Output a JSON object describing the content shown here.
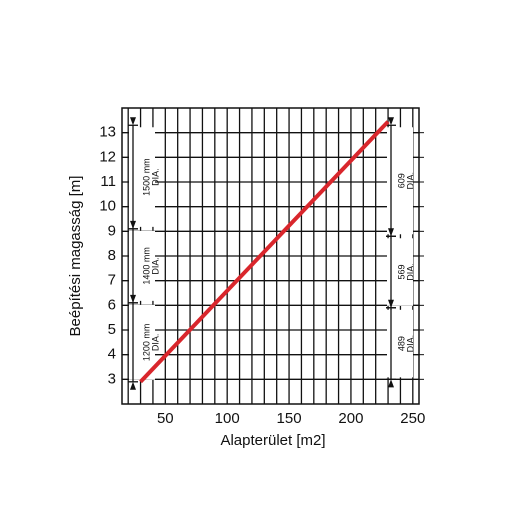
{
  "chart_data": {
    "type": "line",
    "x_label": "Alapterület [m2]",
    "y_label": "Beépítési magasság [m]",
    "x": [
      30,
      230
    ],
    "series": [
      {
        "color": "#d9262c",
        "values": [
          2.9,
          13.45
        ]
      }
    ],
    "xlim": [
      15,
      255
    ],
    "ylim": [
      2,
      14
    ],
    "xticks": [
      50,
      100,
      150,
      200,
      250
    ],
    "yticks": [
      3,
      4,
      5,
      6,
      7,
      8,
      9,
      10,
      11,
      12,
      13
    ],
    "xgrid": [
      20,
      30,
      40,
      50,
      60,
      70,
      80,
      90,
      100,
      110,
      120,
      130,
      140,
      150,
      160,
      170,
      180,
      190,
      200,
      210,
      220,
      230,
      240,
      250
    ],
    "grid": true,
    "annotations": [
      {
        "side": "left",
        "lines": [
          "1500 mm",
          "DIA."
        ],
        "range": [
          9.1,
          13.3
        ]
      },
      {
        "side": "left",
        "lines": [
          "1400 mm",
          "DIA."
        ],
        "range": [
          6.1,
          9.1
        ]
      },
      {
        "side": "left",
        "lines": [
          "1200 mm",
          "DIA."
        ],
        "range": [
          2.9,
          6.1
        ]
      },
      {
        "side": "right",
        "lines": [
          "609",
          "DIA."
        ],
        "range": [
          8.8,
          13.3
        ]
      },
      {
        "side": "right",
        "lines": [
          "569",
          "DIA."
        ],
        "range": [
          5.9,
          8.8
        ]
      },
      {
        "side": "right",
        "lines": [
          "489",
          "DIA."
        ],
        "range": [
          3.0,
          5.9
        ]
      }
    ]
  }
}
